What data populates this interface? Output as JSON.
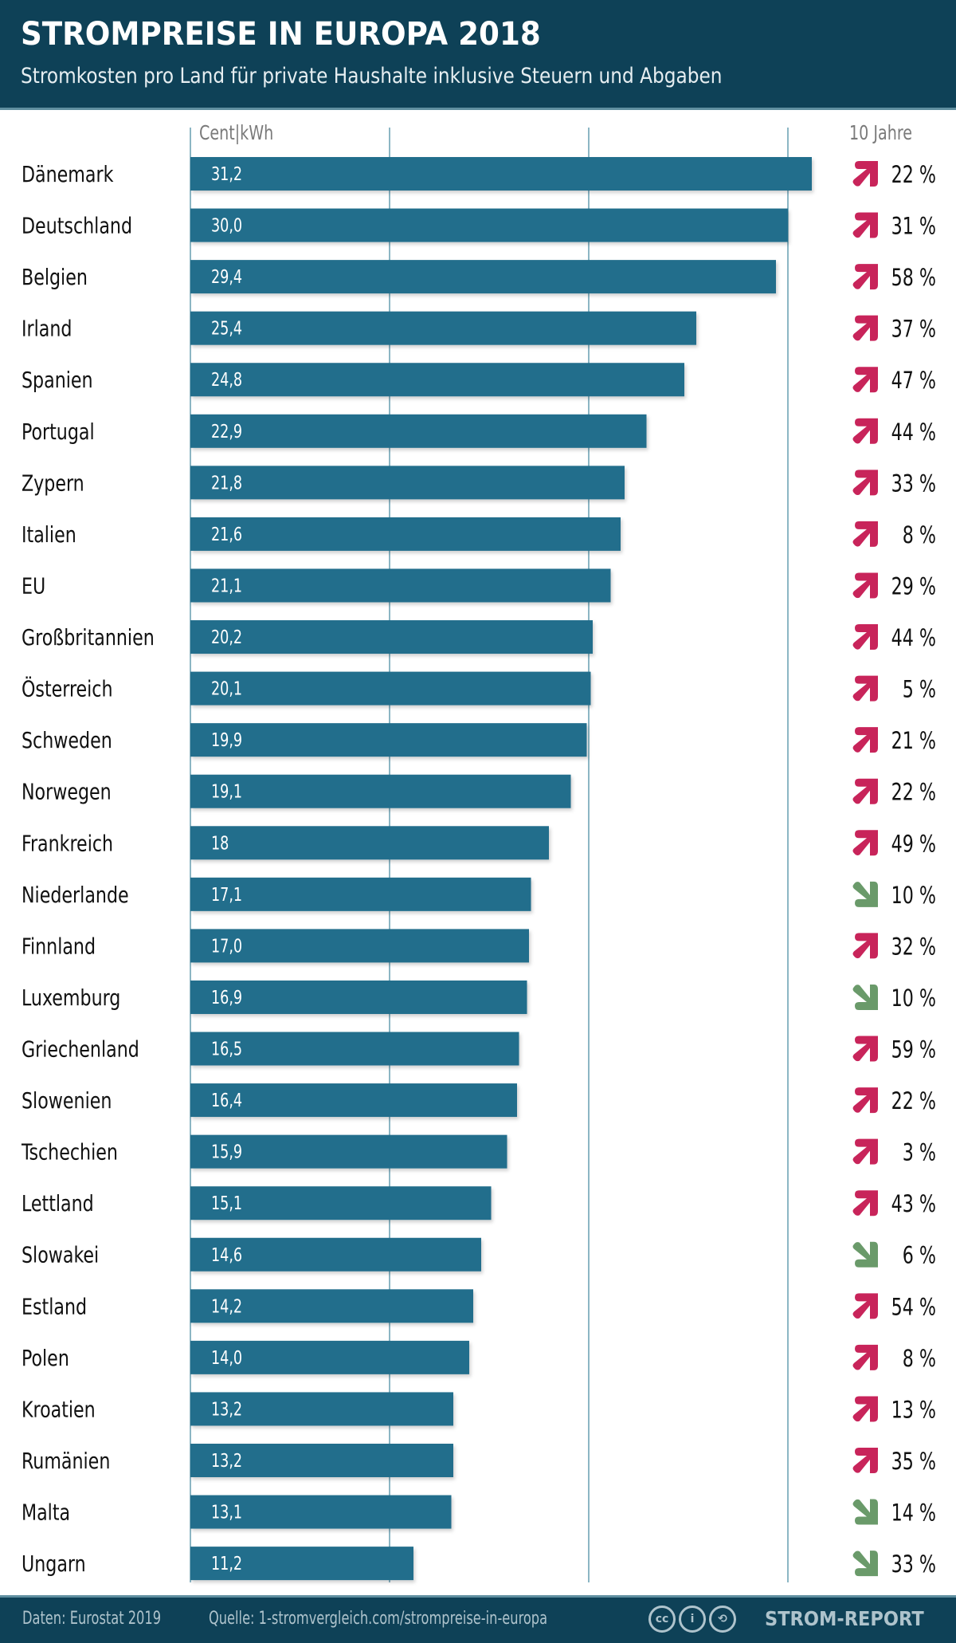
{
  "header": {
    "title": "STROMPREISE IN EUROPA 2018",
    "subtitle": "Stromkosten pro Land für private Haushalte inklusive Steuern und Abgaben"
  },
  "footer": {
    "data_label": "Daten: Eurostat 2019",
    "source_label": "Quelle: 1-stromvergleich.com/strompreise-in-europa",
    "license_icons": [
      "cc",
      "i",
      "⟲"
    ],
    "brand": "STROM-REPORT"
  },
  "colors": {
    "header_bg": "#0e4157",
    "bar": "#206e8c",
    "gridline": "#8cb6c4",
    "increase": "#c8245a",
    "decrease": "#6a9a6a"
  },
  "chart_data": {
    "type": "bar",
    "orientation": "horizontal",
    "title": "STROMPREISE IN EUROPA 2018",
    "subtitle": "Stromkosten pro Land für private Haushalte inklusive Steuern und Abgaben",
    "xlabel": "Cent|kWh",
    "ylabel": "",
    "xlim": [
      0,
      32
    ],
    "grid_values": [
      10,
      20,
      30
    ],
    "grid": true,
    "trend_header": "10 Jahre",
    "categories": [
      "Dänemark",
      "Deutschland",
      "Belgien",
      "Irland",
      "Spanien",
      "Portugal",
      "Zypern",
      "Italien",
      "EU",
      "Großbritannien",
      "Österreich",
      "Schweden",
      "Norwegen",
      "Frankreich",
      "Niederlande",
      "Finnland",
      "Luxemburg",
      "Griechenland",
      "Slowenien",
      "Tschechien",
      "Lettland",
      "Slowakei",
      "Estland",
      "Polen",
      "Kroatien",
      "Rumänien",
      "Malta",
      "Ungarn"
    ],
    "values": [
      31.2,
      30.0,
      29.4,
      25.4,
      24.8,
      22.9,
      21.8,
      21.6,
      21.1,
      20.2,
      20.1,
      19.9,
      19.1,
      18.0,
      17.1,
      17.0,
      16.9,
      16.5,
      16.4,
      15.9,
      15.1,
      14.6,
      14.2,
      14.0,
      13.2,
      13.2,
      13.1,
      11.2
    ],
    "value_labels": [
      "31,2",
      "30,0",
      "29,4",
      "25,4",
      "24,8",
      "22,9",
      "21,8",
      "21,6",
      "21,1",
      "20,2",
      "20,1",
      "19,9",
      "19,1",
      "18",
      "17,1",
      "17,0",
      "16,9",
      "16,5",
      "16,4",
      "15,9",
      "15,1",
      "14,6",
      "14,2",
      "14,0",
      "13,2",
      "13,2",
      "13,1",
      "11,2"
    ],
    "change_10y_percent": [
      22,
      31,
      58,
      37,
      47,
      44,
      33,
      8,
      29,
      44,
      5,
      21,
      22,
      49,
      -10,
      32,
      -10,
      59,
      22,
      3,
      43,
      -6,
      54,
      8,
      13,
      35,
      -14,
      -33
    ],
    "change_labels": [
      "22 %",
      "31 %",
      "58 %",
      "37 %",
      "47 %",
      "44 %",
      "33 %",
      "8 %",
      "29 %",
      "44 %",
      "5 %",
      "21 %",
      "22 %",
      "49 %",
      "10 %",
      "32 %",
      "10 %",
      "59 %",
      "22 %",
      "3 %",
      "43 %",
      "6 %",
      "54 %",
      "8 %",
      "13 %",
      "35 %",
      "14 %",
      "33 %"
    ],
    "change_direction": [
      "up",
      "up",
      "up",
      "up",
      "up",
      "up",
      "up",
      "up",
      "up",
      "up",
      "up",
      "up",
      "up",
      "up",
      "down",
      "up",
      "down",
      "up",
      "up",
      "up",
      "up",
      "down",
      "up",
      "up",
      "up",
      "up",
      "down",
      "down"
    ]
  }
}
